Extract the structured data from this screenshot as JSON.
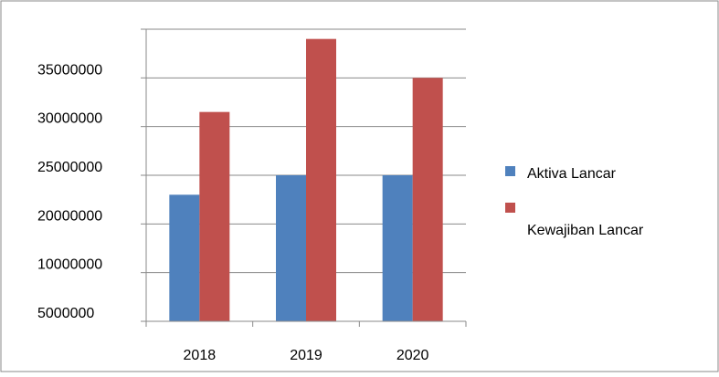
{
  "chart_data": {
    "type": "bar",
    "categories": [
      "2018",
      "2019",
      "2020"
    ],
    "y_tick_labels": [
      "5000000",
      "10000000",
      "20000000",
      "25000000",
      "30000000",
      "35000000"
    ],
    "series": [
      {
        "name": "Aktiva Lancar",
        "color": "#4f81bd",
        "values": [
          2.6,
          3.0,
          3.0
        ]
      },
      {
        "name": "Kewajiban Lancar",
        "color": "#c0504d",
        "values": [
          4.3,
          5.8,
          5.0
        ]
      }
    ],
    "ylim": [
      0,
      6
    ],
    "gridlines": true,
    "legend_position": "right"
  }
}
